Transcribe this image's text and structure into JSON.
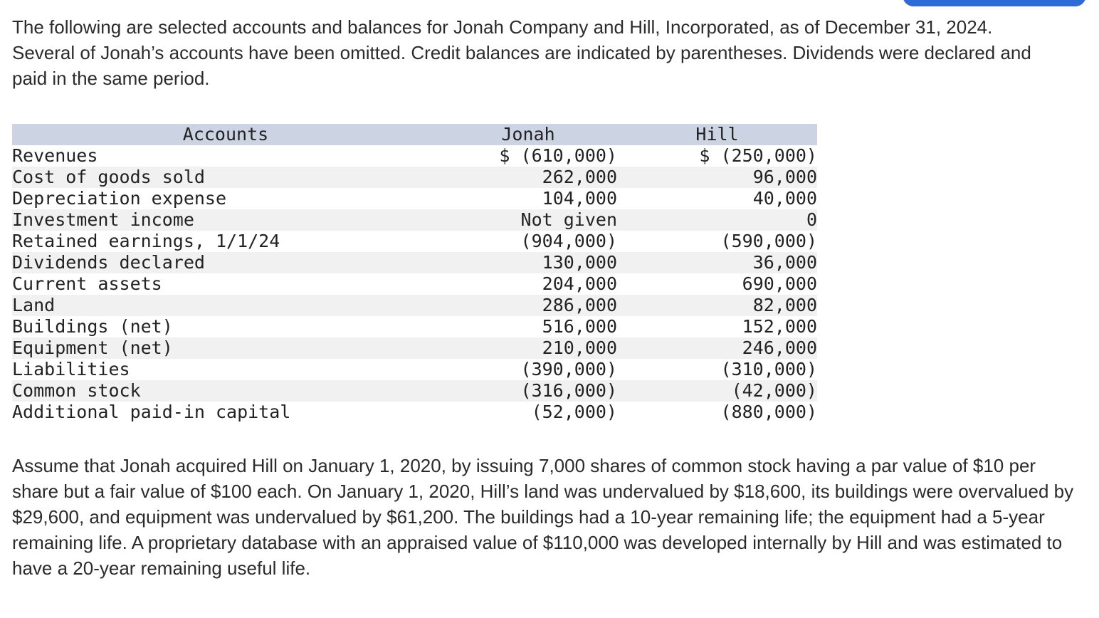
{
  "page": {
    "intro": "The following are selected accounts and balances for Jonah Company and Hill, Incorporated, as of December 31, 2024. Several of Jonah’s accounts have been omitted. Credit balances are indicated by parentheses. Dividends were declared and paid in the same period.",
    "assumption": "Assume that Jonah acquired Hill on January 1, 2020, by issuing 7,000 shares of common stock having a par value of $10 per share but a fair value of $100 each. On January 1, 2020, Hill’s land was undervalued by $18,600, its buildings were overvalued by $29,600, and equipment was undervalued by $61,200. The buildings had a 10-year remaining life; the equipment had a 5-year remaining life. A proprietary database with an appraised value of $110,000 was developed internally by Hill and was estimated to have a 20-year remaining useful life."
  },
  "table": {
    "headers": [
      "Accounts",
      "Jonah",
      "Hill"
    ],
    "rows": [
      {
        "account": "Revenues",
        "jonah": "$ (610,000)",
        "hill": "$ (250,000)"
      },
      {
        "account": "Cost of goods sold",
        "jonah": "262,000",
        "hill": "96,000"
      },
      {
        "account": "Depreciation expense",
        "jonah": "104,000",
        "hill": "40,000"
      },
      {
        "account": "Investment income",
        "jonah": "Not given",
        "hill": "0"
      },
      {
        "account": "Retained earnings, 1/1/24",
        "jonah": "(904,000)",
        "hill": "(590,000)"
      },
      {
        "account": "Dividends declared",
        "jonah": "130,000",
        "hill": "36,000"
      },
      {
        "account": "Current assets",
        "jonah": "204,000",
        "hill": "690,000"
      },
      {
        "account": "Land",
        "jonah": "286,000",
        "hill": "82,000"
      },
      {
        "account": "Buildings (net)",
        "jonah": "516,000",
        "hill": "152,000"
      },
      {
        "account": "Equipment (net)",
        "jonah": "210,000",
        "hill": "246,000"
      },
      {
        "account": "Liabilities",
        "jonah": "(390,000)",
        "hill": "(310,000)"
      },
      {
        "account": "Common stock",
        "jonah": "(316,000)",
        "hill": "(42,000)"
      },
      {
        "account": "Additional paid-in capital",
        "jonah": "(52,000)",
        "hill": "(880,000)"
      }
    ]
  },
  "colors": {
    "table_header_bg": "#ccd4e3",
    "row_stripe_bg": "#f1f1f1",
    "button_blue": "#2e6bd7",
    "text": "#2b2b2b"
  }
}
